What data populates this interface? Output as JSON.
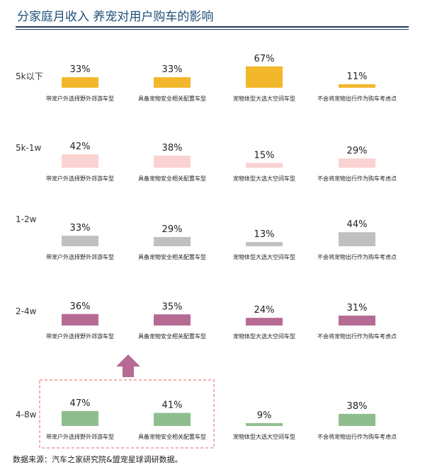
{
  "header": {
    "title": "分家庭月收入 养宠对用户购车的影响"
  },
  "footer": {
    "source": "数据来源：汽车之家研究院&盟宠星球调研数据。"
  },
  "chart_data": {
    "type": "bar",
    "categories": [
      "带宠户外选择野外郊游车型",
      "具备宠物安全相关配置车型",
      "宠物体型大选大空间车型",
      "不会将宠物出行作为购车考虑点"
    ],
    "series": [
      {
        "name": "5k以下",
        "values": [
          33,
          33,
          67,
          11
        ],
        "color": "#f3b72b"
      },
      {
        "name": "5k-1w",
        "values": [
          42,
          38,
          15,
          29
        ],
        "color": "#fbd2d2"
      },
      {
        "name": "1-2w",
        "values": [
          33,
          29,
          13,
          44
        ],
        "color": "#c0c0c0"
      },
      {
        "name": "2-4w",
        "values": [
          36,
          35,
          24,
          31
        ],
        "color": "#b56b93"
      },
      {
        "name": "4-8w",
        "values": [
          47,
          41,
          9,
          38
        ],
        "color": "#8fbe8e"
      }
    ],
    "value_suffix": "%",
    "highlight": {
      "series": "4-8w",
      "categories": [
        0,
        1
      ],
      "border_color": "#e06666"
    },
    "arrow_color": "#b56b93"
  }
}
